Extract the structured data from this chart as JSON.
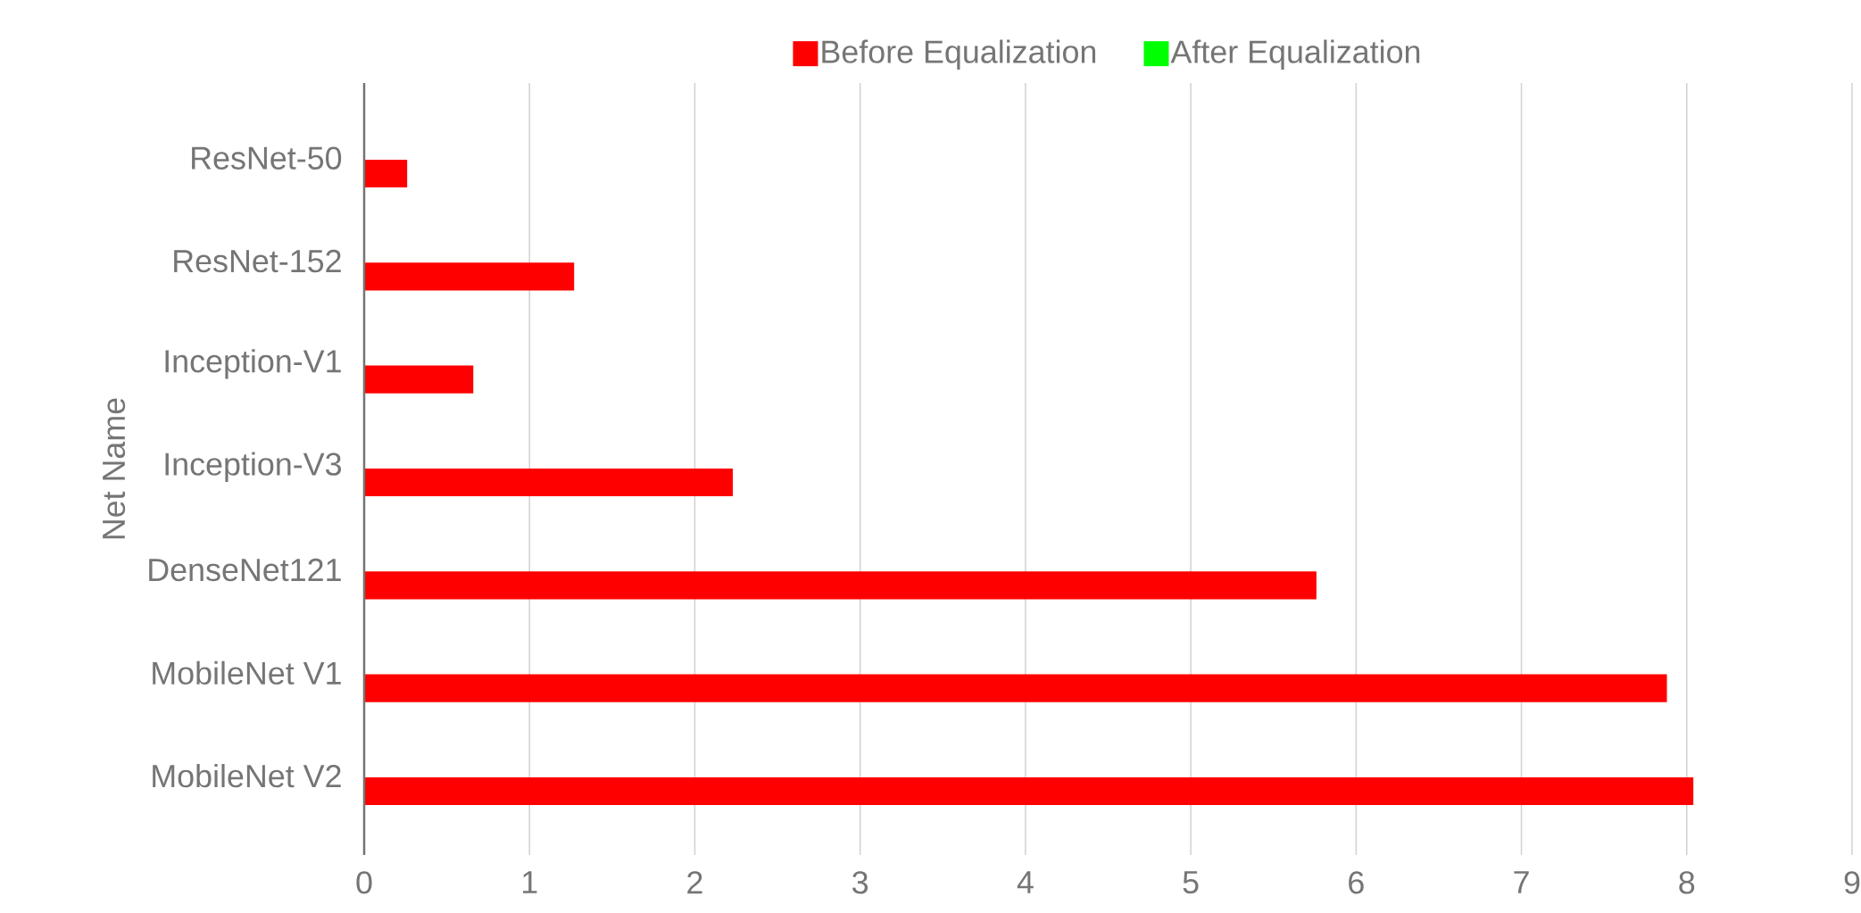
{
  "chart_data": {
    "type": "bar",
    "orientation": "horizontal",
    "ylabel": "Net Name",
    "categories": [
      "ResNet-50",
      "ResNet-152",
      "Inception-V1",
      "Inception-V3",
      "DenseNet121",
      "MobileNet V1",
      "MobileNet V2"
    ],
    "series": [
      {
        "name": "Before Equalization",
        "color": "#ff0000",
        "values": [
          0.26,
          1.27,
          0.66,
          2.23,
          5.76,
          7.88,
          8.04
        ]
      },
      {
        "name": "After Equalization",
        "color": "#00ff00",
        "values": [
          null,
          null,
          null,
          null,
          null,
          null,
          null
        ]
      }
    ],
    "xlim": [
      0,
      9
    ],
    "xticks": [
      0,
      1,
      2,
      3,
      4,
      5,
      6,
      7,
      8,
      9
    ],
    "grid": "x",
    "legend": "top"
  }
}
